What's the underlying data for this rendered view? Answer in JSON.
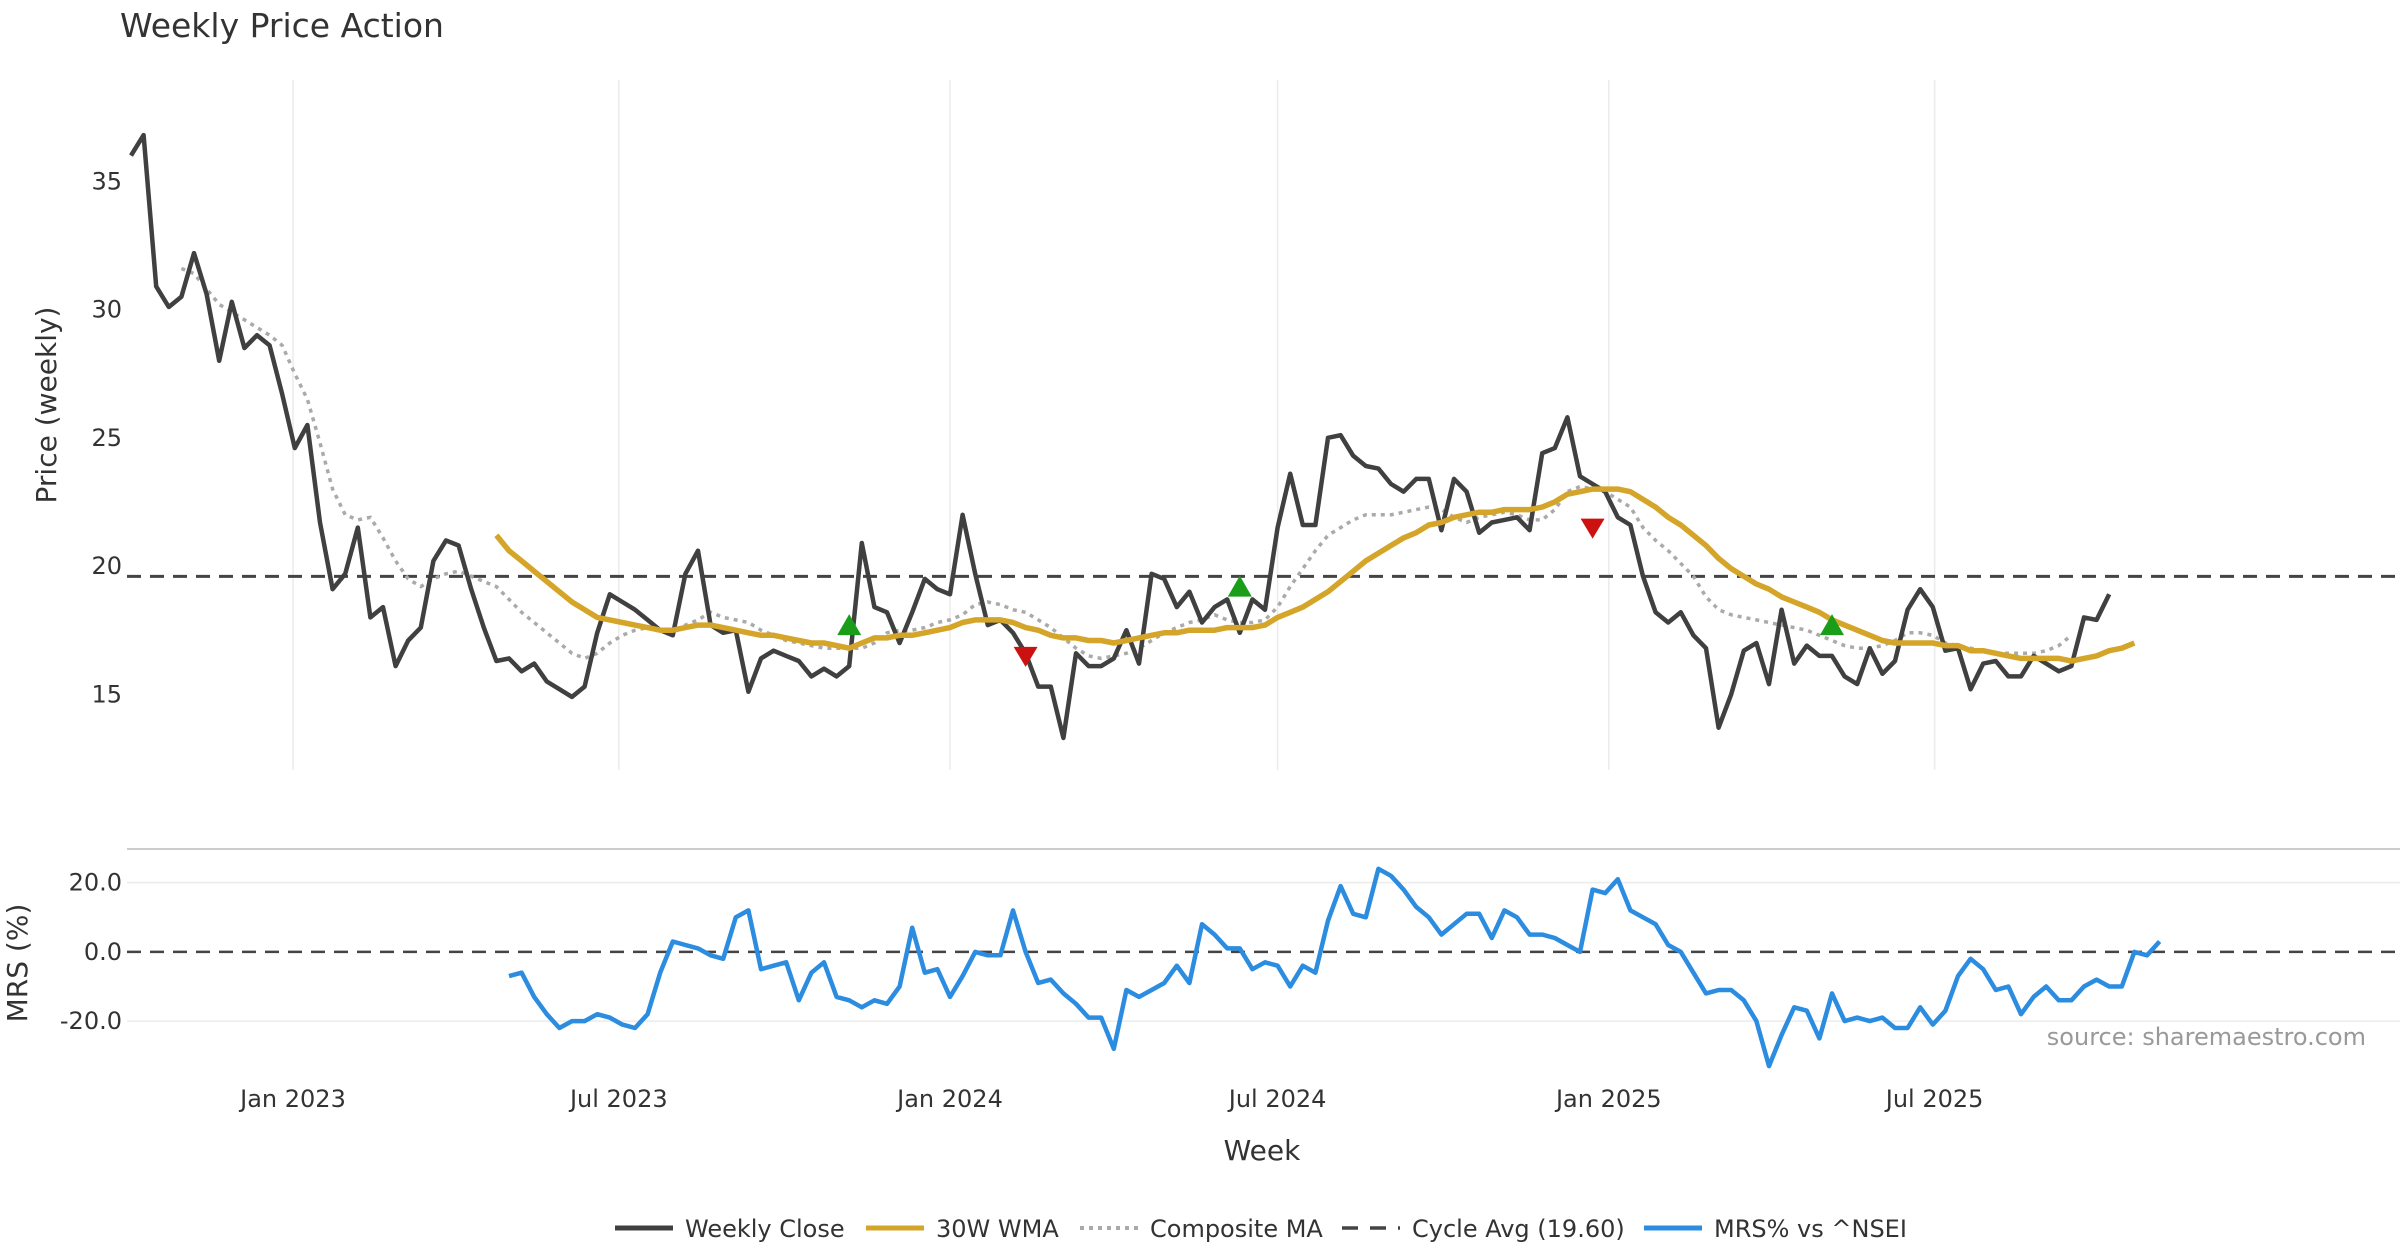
{
  "chart_data": {
    "type": "line",
    "title": "Weekly Price Action",
    "xlabel": "Week",
    "source": "source: sharemaestro.com",
    "x_ticks": [
      "Jan 2023",
      "Jul 2023",
      "Jan 2024",
      "Jul 2024",
      "Jan 2025",
      "Jul 2025"
    ],
    "x_range": [
      "2022-10-03",
      "2025-10-27"
    ],
    "colors": {
      "close": "#404040",
      "wma": "#d4a528",
      "composite": "#aaaaaa",
      "cycle": "#444444",
      "mrs": "#2b8ce0",
      "buy": "#1a9e1a",
      "sell": "#cc1111"
    },
    "price_panel": {
      "ylabel": "Price (weekly)",
      "ylim": [
        11.7,
        37.7
      ],
      "y_ticks": [
        15,
        20,
        25,
        30,
        35
      ],
      "cycle_avg": 19.6,
      "series": [
        {
          "name": "Weekly Close",
          "start": 0,
          "values": [
            36.0,
            36.8,
            30.9,
            30.1,
            30.5,
            32.2,
            30.6,
            28.0,
            30.3,
            28.5,
            29.0,
            28.6,
            26.7,
            24.6,
            25.5,
            21.7,
            19.1,
            19.7,
            21.5,
            18.0,
            18.4,
            16.1,
            17.1,
            17.6,
            20.2,
            21.0,
            20.8,
            19.1,
            17.6,
            16.3,
            16.4,
            15.9,
            16.2,
            15.5,
            15.2,
            14.9,
            15.3,
            17.4,
            18.9,
            18.6,
            18.3,
            17.9,
            17.5,
            17.3,
            19.7,
            20.6,
            17.7,
            17.4,
            17.5,
            15.1,
            16.4,
            16.7,
            16.5,
            16.3,
            15.7,
            16.0,
            15.7,
            16.1,
            20.9,
            18.4,
            18.2,
            17.0,
            18.2,
            19.5,
            19.1,
            18.9,
            22.0,
            19.7,
            17.7,
            17.9,
            17.4,
            16.6,
            15.3,
            15.3,
            13.3,
            16.6,
            16.1,
            16.1,
            16.4,
            17.5,
            16.2,
            19.7,
            19.5,
            18.4,
            19.0,
            17.8,
            18.4,
            18.7,
            17.4,
            18.7,
            18.3,
            21.5,
            23.6,
            21.6,
            21.6,
            25.0,
            25.1,
            24.3,
            23.9,
            23.8,
            23.2,
            22.9,
            23.4,
            23.4,
            21.4,
            23.4,
            22.9,
            21.3,
            21.7,
            21.8,
            21.9,
            21.4,
            24.4,
            24.6,
            25.8,
            23.5,
            23.2,
            22.9,
            21.9,
            21.6,
            19.6,
            18.2,
            17.8,
            18.2,
            17.3,
            16.8,
            13.7,
            15.0,
            16.7,
            17.0,
            15.4,
            18.3,
            16.2,
            16.9,
            16.5,
            16.5,
            15.7,
            15.4,
            16.8,
            15.8,
            16.3,
            18.3,
            19.1,
            18.4,
            16.7,
            16.8,
            15.2,
            16.2,
            16.3,
            15.7,
            15.7,
            16.5,
            16.2,
            15.9,
            16.1,
            18.0,
            17.9,
            18.9
          ]
        },
        {
          "name": "30W WMA",
          "start": 29,
          "values": [
            21.2,
            20.6,
            20.2,
            19.8,
            19.4,
            19.0,
            18.6,
            18.3,
            18.0,
            17.9,
            17.8,
            17.7,
            17.6,
            17.5,
            17.5,
            17.6,
            17.7,
            17.7,
            17.6,
            17.5,
            17.4,
            17.3,
            17.3,
            17.2,
            17.1,
            17.0,
            17.0,
            16.9,
            16.8,
            17.0,
            17.2,
            17.2,
            17.3,
            17.3,
            17.4,
            17.5,
            17.6,
            17.8,
            17.9,
            17.9,
            17.9,
            17.8,
            17.6,
            17.5,
            17.3,
            17.2,
            17.2,
            17.1,
            17.1,
            17.0,
            17.1,
            17.2,
            17.3,
            17.4,
            17.4,
            17.5,
            17.5,
            17.5,
            17.6,
            17.6,
            17.6,
            17.7,
            18.0,
            18.2,
            18.4,
            18.7,
            19.0,
            19.4,
            19.8,
            20.2,
            20.5,
            20.8,
            21.1,
            21.3,
            21.6,
            21.7,
            21.9,
            22.0,
            22.1,
            22.1,
            22.2,
            22.2,
            22.2,
            22.3,
            22.5,
            22.8,
            22.9,
            23.0,
            23.0,
            23.0,
            22.9,
            22.6,
            22.3,
            21.9,
            21.6,
            21.2,
            20.8,
            20.3,
            19.9,
            19.6,
            19.3,
            19.1,
            18.8,
            18.6,
            18.4,
            18.2,
            17.9,
            17.7,
            17.5,
            17.3,
            17.1,
            17.0,
            17.0,
            17.0,
            17.0,
            16.9,
            16.9,
            16.7,
            16.7,
            16.6,
            16.5,
            16.4,
            16.4,
            16.4,
            16.4,
            16.3,
            16.4,
            16.5,
            16.7,
            16.8,
            17.0
          ]
        },
        {
          "name": "Composite MA",
          "start": 4,
          "values": [
            31.6,
            31.4,
            30.8,
            30.2,
            29.9,
            29.6,
            29.3,
            29.0,
            28.6,
            27.5,
            26.5,
            24.8,
            23.0,
            22.0,
            21.8,
            21.9,
            21.1,
            20.2,
            19.5,
            19.2,
            19.5,
            19.7,
            19.8,
            19.6,
            19.4,
            19.2,
            18.7,
            18.2,
            17.8,
            17.4,
            17.0,
            16.6,
            16.4,
            16.6,
            17.0,
            17.3,
            17.5,
            17.6,
            17.5,
            17.5,
            17.7,
            17.9,
            18.2,
            18.0,
            17.9,
            17.8,
            17.5,
            17.3,
            17.1,
            17.0,
            16.9,
            16.8,
            16.8,
            16.8,
            16.8,
            17.0,
            17.4,
            17.5,
            17.5,
            17.6,
            17.8,
            17.9,
            18.1,
            18.5,
            18.6,
            18.5,
            18.3,
            18.2,
            17.9,
            17.6,
            17.2,
            16.8,
            16.5,
            16.4,
            16.5,
            16.6,
            16.8,
            17.1,
            17.4,
            17.6,
            17.8,
            17.9,
            18.1,
            17.9,
            17.8,
            17.8,
            17.9,
            18.4,
            19.2,
            19.9,
            20.6,
            21.2,
            21.5,
            21.8,
            22.0,
            22.0,
            22.0,
            22.1,
            22.2,
            22.3,
            22.2,
            21.9,
            21.7,
            21.9,
            22.0,
            22.1,
            22.0,
            21.8,
            21.8,
            22.2,
            22.9,
            23.1,
            23.0,
            22.9,
            22.6,
            22.3,
            21.5,
            21.0,
            20.6,
            20.1,
            19.6,
            18.8,
            18.3,
            18.1,
            18.0,
            17.9,
            17.8,
            17.7,
            17.6,
            17.5,
            17.3,
            17.1,
            16.9,
            16.8,
            16.8,
            16.9,
            17.1,
            17.4,
            17.4,
            17.3,
            17.0,
            16.9,
            16.8,
            16.7,
            16.6,
            16.6,
            16.6,
            16.6,
            16.7,
            16.9,
            17.3
          ]
        }
      ],
      "signals": [
        {
          "type": "buy",
          "index": 57,
          "value": 17.7
        },
        {
          "type": "sell",
          "index": 71,
          "value": 16.5
        },
        {
          "type": "buy",
          "index": 88,
          "value": 19.2
        },
        {
          "type": "sell",
          "index": 116,
          "value": 21.5
        },
        {
          "type": "buy",
          "index": 135,
          "value": 17.7
        }
      ]
    },
    "mrs_panel": {
      "ylabel": "MRS (%)",
      "ylim": [
        -35,
        28
      ],
      "y_ticks": [
        20,
        0,
        -20
      ],
      "y_tick_labels": [
        "20.0",
        "0.0",
        "-20.0"
      ],
      "zero_line": 0,
      "series": [
        {
          "name": "MRS% vs ^NSEI",
          "start": 30,
          "values": [
            -7,
            -6,
            -13,
            -18,
            -22,
            -20,
            -20,
            -18,
            -19,
            -21,
            -22,
            -18,
            -6,
            3,
            2,
            1,
            -1,
            -2,
            10,
            12,
            -5,
            -4,
            -3,
            -14,
            -6,
            -3,
            -13,
            -14,
            -16,
            -14,
            -15,
            -10,
            7,
            -6,
            -5,
            -13,
            -7,
            0,
            -1,
            -1,
            12,
            0,
            -9,
            -8,
            -12,
            -15,
            -19,
            -19,
            -28,
            -11,
            -13,
            -11,
            -9,
            -4,
            -9,
            8,
            5,
            1,
            1,
            -5,
            -3,
            -4,
            -10,
            -4,
            -6,
            9,
            19,
            11,
            10,
            24,
            22,
            18,
            13,
            10,
            5,
            8,
            11,
            11,
            4,
            12,
            10,
            5,
            5,
            4,
            2,
            0,
            18,
            17,
            21,
            12,
            10,
            8,
            2,
            0,
            -6,
            -12,
            -11,
            -11,
            -14,
            -20,
            -33,
            -24,
            -16,
            -17,
            -25,
            -12,
            -20,
            -19,
            -20,
            -19,
            -22,
            -22,
            -16,
            -21,
            -17,
            -7,
            -2,
            -5,
            -11,
            -10,
            -18,
            -13,
            -10,
            -14,
            -14,
            -10,
            -8,
            -10,
            -10,
            0,
            -1,
            3
          ]
        }
      ]
    },
    "legend": {
      "position": "bottom-center",
      "items": [
        {
          "label": "Weekly Close",
          "style": "solid",
          "color": "#404040"
        },
        {
          "label": "30W WMA",
          "style": "solid",
          "color": "#d4a528"
        },
        {
          "label": "Composite MA",
          "style": "dotted",
          "color": "#aaaaaa"
        },
        {
          "label": "Cycle Avg (19.60)",
          "style": "dashed",
          "color": "#444444"
        },
        {
          "label": "MRS% vs ^NSEI",
          "style": "solid",
          "color": "#2b8ce0"
        }
      ]
    }
  }
}
